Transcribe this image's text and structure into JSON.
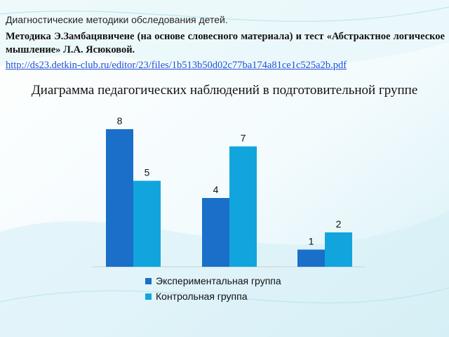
{
  "heading": "Диагностические методики обследования детей.",
  "method_text": "Методика Э.Замбацявичене (на основе словесного материала) и тест «Абстрактное логическое мышление» Л.А. Ясюковой.",
  "link_text": "http://ds23.detkin-club.ru/editor/23/files/1b513b50d02c77ba174a81ce1c525a2b.pdf",
  "colors": {
    "experimental": "#1a6fc9",
    "control": "#12a5dd"
  },
  "chart_data": {
    "type": "bar",
    "title": "Диаграмма педагогических наблюдений в подготовительной группе",
    "categories": [
      "",
      "",
      ""
    ],
    "series": [
      {
        "name": "Экспериментальная группа",
        "values": [
          8,
          4,
          1
        ]
      },
      {
        "name": "Контрольная группа",
        "values": [
          5,
          7,
          2
        ]
      }
    ],
    "ylim": [
      0,
      8
    ],
    "grid": false,
    "legend": "bottom",
    "data_labels": true
  }
}
